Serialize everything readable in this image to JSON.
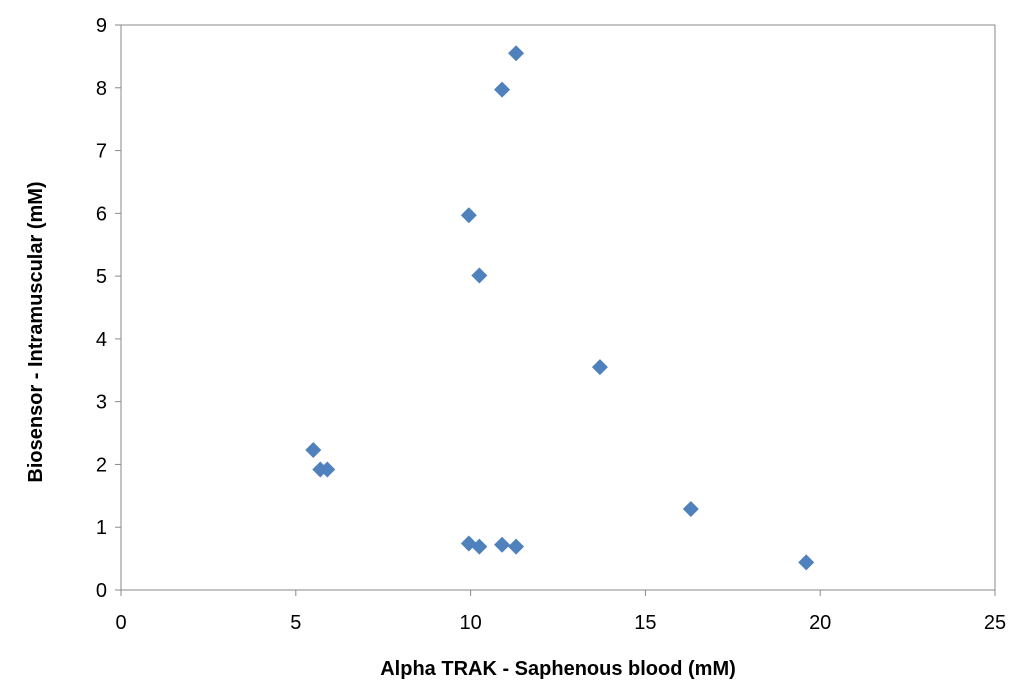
{
  "chart_data": {
    "type": "scatter",
    "title": "",
    "xlabel": "Alpha TRAK - Saphenous blood (mM)",
    "ylabel": "Biosensor - Intramuscular (mM)",
    "xlim": [
      0,
      25
    ],
    "ylim": [
      0,
      9
    ],
    "x_ticks": [
      0,
      5,
      10,
      15,
      20,
      25
    ],
    "y_ticks": [
      0,
      1,
      2,
      3,
      4,
      5,
      6,
      7,
      8,
      9
    ],
    "grid": false,
    "legend": "none",
    "marker": "diamond",
    "series": [
      {
        "color": "#4F81BD",
        "points": [
          {
            "x": 11.3,
            "y": 8.55
          },
          {
            "x": 10.9,
            "y": 7.97
          },
          {
            "x": 9.95,
            "y": 5.97
          },
          {
            "x": 10.25,
            "y": 5.01
          },
          {
            "x": 13.7,
            "y": 3.55
          },
          {
            "x": 5.5,
            "y": 2.23
          },
          {
            "x": 5.7,
            "y": 1.92
          },
          {
            "x": 5.9,
            "y": 1.92
          },
          {
            "x": 16.3,
            "y": 1.29
          },
          {
            "x": 9.95,
            "y": 0.74
          },
          {
            "x": 10.25,
            "y": 0.69
          },
          {
            "x": 10.9,
            "y": 0.72
          },
          {
            "x": 11.3,
            "y": 0.69
          },
          {
            "x": 19.6,
            "y": 0.44
          }
        ]
      }
    ]
  }
}
